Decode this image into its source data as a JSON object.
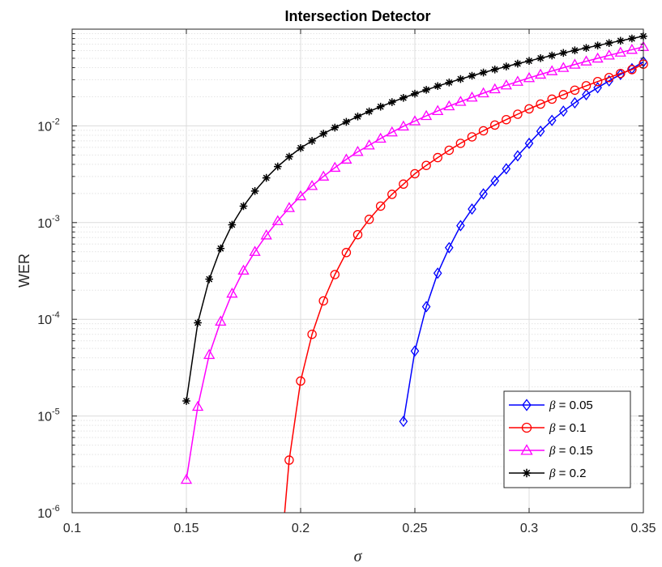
{
  "chart_data": {
    "type": "line",
    "title": "Intersection Detector",
    "xlabel": "σ",
    "ylabel": "WER",
    "yscale": "log",
    "xlim": [
      0.1,
      0.35
    ],
    "ylim": [
      1e-06,
      0.1
    ],
    "xticks": [
      {
        "value": 0.1,
        "label": "0.1"
      },
      {
        "value": 0.15,
        "label": "0.15"
      },
      {
        "value": 0.2,
        "label": "0.2"
      },
      {
        "value": 0.25,
        "label": "0.25"
      },
      {
        "value": 0.3,
        "label": "0.3"
      },
      {
        "value": 0.35,
        "label": "0.35"
      }
    ],
    "yticks": [
      {
        "value": 1e-06,
        "base": "10",
        "exp": "-6"
      },
      {
        "value": 1e-05,
        "base": "10",
        "exp": "-5"
      },
      {
        "value": 0.0001,
        "base": "10",
        "exp": "-4"
      },
      {
        "value": 0.001,
        "base": "10",
        "exp": "-3"
      },
      {
        "value": 0.01,
        "base": "10",
        "exp": "-2"
      }
    ],
    "grid": true,
    "minor_grid": true,
    "legend_position": "bottom-right",
    "series": [
      {
        "name": "β = 0.05",
        "symbol": "β",
        "label_rest": " = 0.05",
        "color": "#0000ff",
        "marker": "diamond",
        "x": [
          0.245,
          0.25,
          0.255,
          0.26,
          0.265,
          0.27,
          0.275,
          0.28,
          0.285,
          0.29,
          0.295,
          0.3,
          0.305,
          0.31,
          0.315,
          0.32,
          0.325,
          0.33,
          0.335,
          0.34,
          0.345,
          0.35
        ],
        "y": [
          8.8e-06,
          4.7e-05,
          0.000135,
          0.0003,
          0.00055,
          0.00093,
          0.00138,
          0.00198,
          0.0027,
          0.0036,
          0.0049,
          0.0066,
          0.0088,
          0.0114,
          0.0142,
          0.0173,
          0.021,
          0.0248,
          0.0292,
          0.034,
          0.039,
          0.046
        ]
      },
      {
        "name": "β = 0.1",
        "symbol": "β",
        "label_rest": " = 0.1",
        "color": "#ff0000",
        "marker": "circle",
        "x": [
          0.193,
          0.195,
          0.2,
          0.205,
          0.21,
          0.215,
          0.22,
          0.225,
          0.23,
          0.235,
          0.24,
          0.245,
          0.25,
          0.255,
          0.26,
          0.265,
          0.27,
          0.275,
          0.28,
          0.285,
          0.29,
          0.295,
          0.3,
          0.305,
          0.31,
          0.315,
          0.32,
          0.325,
          0.33,
          0.335,
          0.34,
          0.345,
          0.35
        ],
        "y": [
          1e-06,
          3.5e-06,
          2.3e-05,
          7e-05,
          0.000155,
          0.00029,
          0.00049,
          0.00075,
          0.00108,
          0.00148,
          0.00196,
          0.0025,
          0.0032,
          0.0039,
          0.0047,
          0.0056,
          0.0066,
          0.0077,
          0.0089,
          0.0102,
          0.0116,
          0.0132,
          0.015,
          0.0168,
          0.0189,
          0.021,
          0.0234,
          0.026,
          0.0287,
          0.0316,
          0.0348,
          0.0382,
          0.0435
        ]
      },
      {
        "name": "β = 0.15",
        "symbol": "β",
        "label_rest": " = 0.15",
        "color": "#ff00ff",
        "marker": "triangle",
        "x": [
          0.15,
          0.155,
          0.16,
          0.165,
          0.17,
          0.175,
          0.18,
          0.185,
          0.19,
          0.195,
          0.2,
          0.205,
          0.21,
          0.215,
          0.22,
          0.225,
          0.23,
          0.235,
          0.24,
          0.245,
          0.25,
          0.255,
          0.26,
          0.265,
          0.27,
          0.275,
          0.28,
          0.285,
          0.29,
          0.295,
          0.3,
          0.305,
          0.31,
          0.315,
          0.32,
          0.325,
          0.33,
          0.335,
          0.34,
          0.345,
          0.35
        ],
        "y": [
          2.2e-06,
          1.25e-05,
          4.3e-05,
          9.5e-05,
          0.000185,
          0.00032,
          0.0005,
          0.00074,
          0.00104,
          0.00142,
          0.00188,
          0.0024,
          0.003,
          0.0037,
          0.0045,
          0.0054,
          0.0063,
          0.0074,
          0.0086,
          0.0099,
          0.0112,
          0.0127,
          0.0143,
          0.016,
          0.0178,
          0.0197,
          0.0218,
          0.024,
          0.0263,
          0.0287,
          0.0313,
          0.034,
          0.0369,
          0.0399,
          0.0431,
          0.0465,
          0.0499,
          0.0536,
          0.0574,
          0.0614,
          0.0657
        ]
      },
      {
        "name": "β = 0.2",
        "symbol": "β",
        "label_rest": " = 0.2",
        "color": "#000000",
        "marker": "asterisk",
        "x": [
          0.15,
          0.155,
          0.16,
          0.165,
          0.17,
          0.175,
          0.18,
          0.185,
          0.19,
          0.195,
          0.2,
          0.205,
          0.21,
          0.215,
          0.22,
          0.225,
          0.23,
          0.235,
          0.24,
          0.245,
          0.25,
          0.255,
          0.26,
          0.265,
          0.27,
          0.275,
          0.28,
          0.285,
          0.29,
          0.295,
          0.3,
          0.305,
          0.31,
          0.315,
          0.32,
          0.325,
          0.33,
          0.335,
          0.34,
          0.345,
          0.35
        ],
        "y": [
          1.43e-05,
          9.2e-05,
          0.00026,
          0.00054,
          0.00095,
          0.00148,
          0.00212,
          0.0029,
          0.0038,
          0.0048,
          0.0059,
          0.007,
          0.0083,
          0.0096,
          0.011,
          0.0125,
          0.0141,
          0.0158,
          0.0176,
          0.0195,
          0.0215,
          0.0236,
          0.0258,
          0.0281,
          0.0305,
          0.033,
          0.0356,
          0.0383,
          0.0411,
          0.044,
          0.047,
          0.0501,
          0.0534,
          0.0568,
          0.0603,
          0.064,
          0.0678,
          0.0718,
          0.0759,
          0.0801,
          0.0845
        ]
      }
    ]
  }
}
